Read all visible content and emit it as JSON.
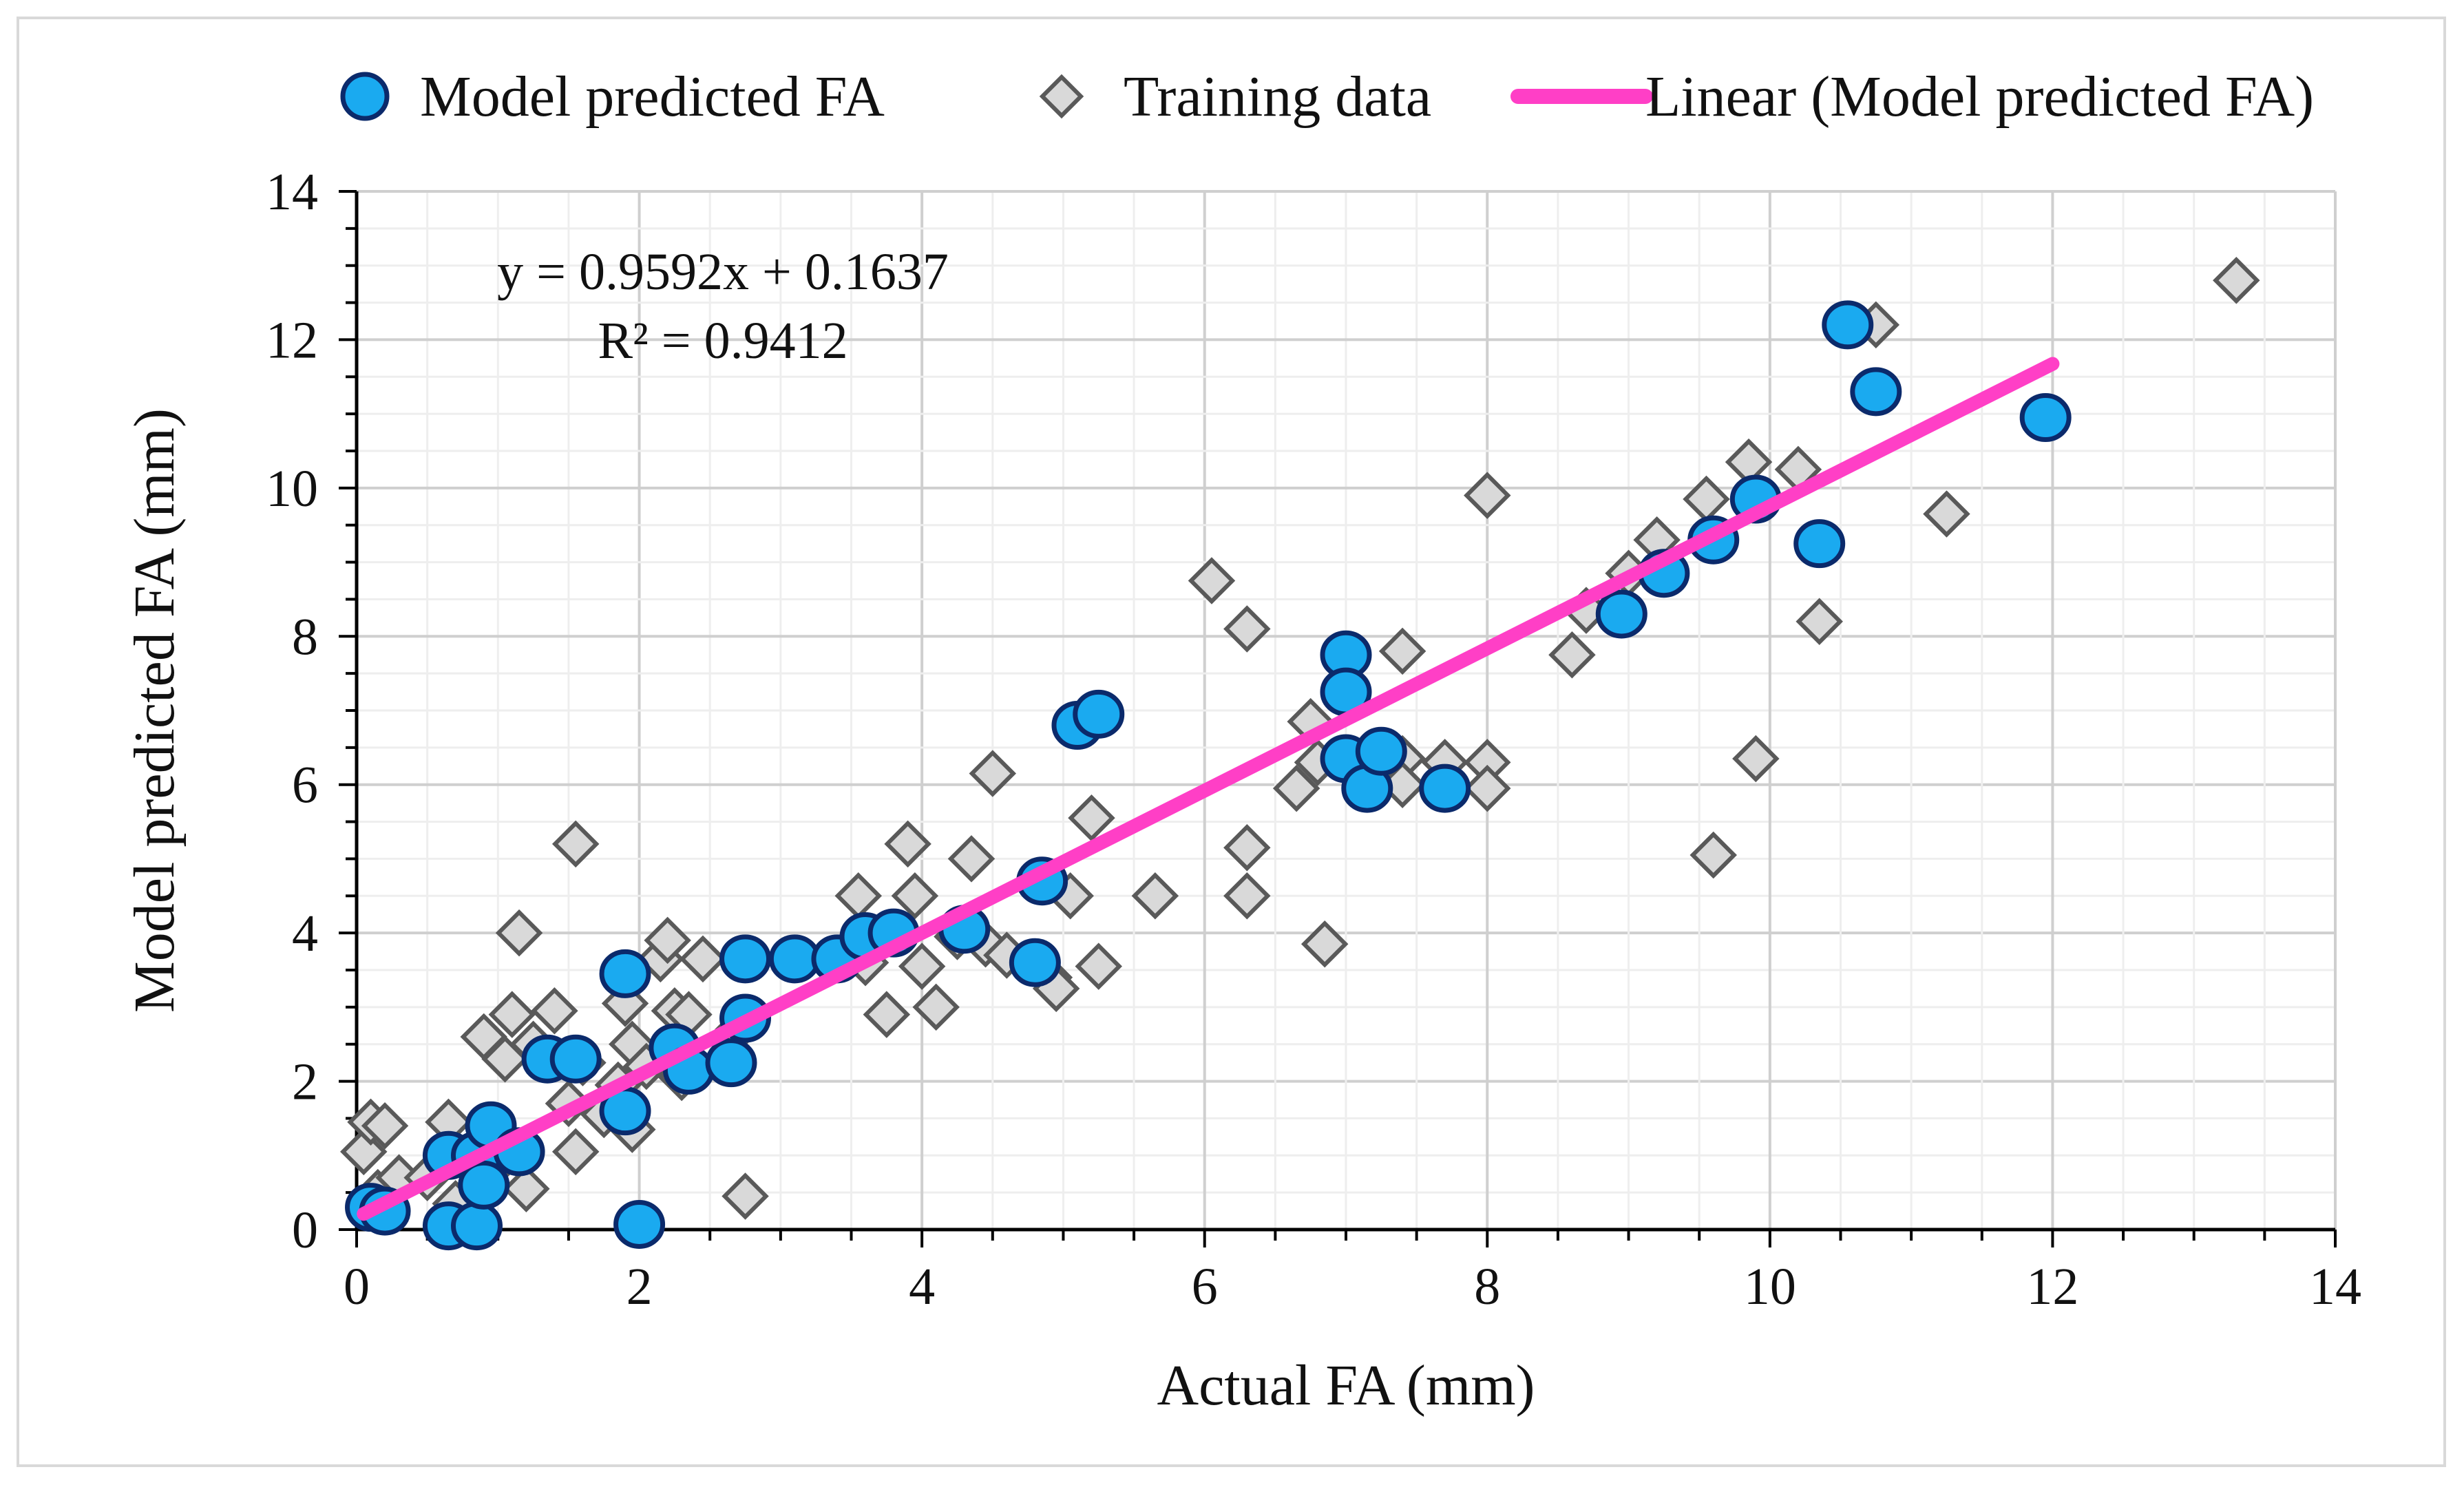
{
  "chart_data": {
    "type": "scatter",
    "xlabel": "Actual FA (mm)",
    "ylabel": "Model predicted FA (mm)",
    "xlim": [
      0,
      14
    ],
    "ylim": [
      0,
      14
    ],
    "xticks": [
      "0",
      "2",
      "4",
      "6",
      "8",
      "10",
      "12",
      "14"
    ],
    "yticks": [
      "0",
      "2",
      "4",
      "6",
      "8",
      "10",
      "12",
      "14"
    ],
    "grid": true,
    "legend_position": "top",
    "legend": [
      "Model predicted FA",
      "Training data",
      "Linear (Model predicted FA)"
    ],
    "equation": "y = 0.9592x + 0.1637",
    "r_squared": "R² = 0.9412",
    "trendline": {
      "name": "Linear (Model predicted FA)",
      "slope": 0.9592,
      "intercept": 0.1637,
      "x_range": [
        0.05,
        12.0
      ],
      "color": "#ff3fc6"
    },
    "series": [
      {
        "name": "Model predicted FA",
        "marker": "circle",
        "color": "#1aaaf0",
        "points": [
          [
            0.1,
            0.3
          ],
          [
            0.2,
            0.25
          ],
          [
            0.65,
            0.05
          ],
          [
            0.85,
            0.05
          ],
          [
            2.0,
            0.07
          ],
          [
            0.65,
            1.0
          ],
          [
            0.85,
            1.0
          ],
          [
            0.95,
            1.4
          ],
          [
            0.9,
            0.6
          ],
          [
            1.15,
            1.05
          ],
          [
            1.35,
            2.3
          ],
          [
            1.55,
            2.3
          ],
          [
            1.9,
            1.6
          ],
          [
            1.9,
            3.45
          ],
          [
            2.25,
            2.45
          ],
          [
            2.35,
            2.15
          ],
          [
            2.65,
            2.25
          ],
          [
            2.75,
            2.85
          ],
          [
            2.75,
            3.65
          ],
          [
            3.1,
            3.65
          ],
          [
            3.4,
            3.65
          ],
          [
            3.6,
            3.95
          ],
          [
            3.8,
            4.0
          ],
          [
            4.3,
            4.05
          ],
          [
            4.8,
            3.6
          ],
          [
            4.85,
            4.7
          ],
          [
            5.1,
            6.8
          ],
          [
            5.25,
            6.95
          ],
          [
            7.0,
            7.75
          ],
          [
            7.0,
            7.25
          ],
          [
            7.0,
            6.35
          ],
          [
            7.15,
            5.95
          ],
          [
            7.25,
            6.45
          ],
          [
            7.7,
            5.95
          ],
          [
            8.95,
            8.3
          ],
          [
            9.25,
            8.85
          ],
          [
            9.6,
            9.3
          ],
          [
            9.9,
            9.85
          ],
          [
            10.35,
            9.25
          ],
          [
            10.55,
            12.2
          ],
          [
            10.75,
            11.3
          ],
          [
            11.95,
            10.95
          ]
        ]
      },
      {
        "name": "Training data",
        "marker": "diamond",
        "color": "#d9d9d9",
        "points": [
          [
            0.05,
            1.05
          ],
          [
            0.1,
            1.45
          ],
          [
            0.2,
            1.4
          ],
          [
            0.15,
            0.5
          ],
          [
            0.3,
            0.7
          ],
          [
            0.5,
            0.7
          ],
          [
            0.65,
            1.45
          ],
          [
            0.7,
            0.35
          ],
          [
            0.9,
            2.6
          ],
          [
            0.95,
            0.8
          ],
          [
            1.05,
            2.3
          ],
          [
            1.1,
            2.9
          ],
          [
            1.15,
            4.0
          ],
          [
            1.2,
            0.55
          ],
          [
            1.25,
            2.5
          ],
          [
            1.4,
            2.95
          ],
          [
            1.5,
            1.7
          ],
          [
            1.55,
            1.05
          ],
          [
            1.55,
            5.2
          ],
          [
            1.6,
            2.25
          ],
          [
            1.75,
            1.55
          ],
          [
            1.85,
            1.95
          ],
          [
            1.9,
            3.05
          ],
          [
            1.95,
            2.5
          ],
          [
            1.95,
            1.35
          ],
          [
            2.05,
            2.2
          ],
          [
            2.15,
            3.65
          ],
          [
            2.2,
            3.9
          ],
          [
            2.25,
            2.95
          ],
          [
            2.3,
            2.05
          ],
          [
            2.35,
            2.9
          ],
          [
            2.45,
            3.65
          ],
          [
            2.7,
            2.7
          ],
          [
            2.75,
            0.45
          ],
          [
            3.55,
            4.5
          ],
          [
            3.6,
            3.6
          ],
          [
            3.75,
            2.9
          ],
          [
            3.9,
            5.2
          ],
          [
            3.95,
            4.5
          ],
          [
            4.0,
            3.55
          ],
          [
            4.1,
            3.0
          ],
          [
            4.25,
            3.95
          ],
          [
            4.35,
            5.0
          ],
          [
            4.45,
            3.85
          ],
          [
            4.5,
            6.15
          ],
          [
            4.6,
            3.7
          ],
          [
            4.9,
            3.4
          ],
          [
            4.95,
            3.25
          ],
          [
            5.05,
            4.5
          ],
          [
            5.2,
            5.55
          ],
          [
            5.25,
            3.55
          ],
          [
            5.65,
            4.5
          ],
          [
            6.05,
            8.75
          ],
          [
            6.3,
            8.1
          ],
          [
            6.3,
            5.15
          ],
          [
            6.3,
            4.5
          ],
          [
            6.65,
            5.95
          ],
          [
            6.75,
            6.85
          ],
          [
            6.8,
            6.3
          ],
          [
            6.85,
            3.85
          ],
          [
            7.4,
            7.8
          ],
          [
            7.4,
            6.35
          ],
          [
            7.4,
            6.0
          ],
          [
            7.7,
            6.3
          ],
          [
            8.0,
            9.9
          ],
          [
            8.0,
            6.3
          ],
          [
            8.0,
            5.95
          ],
          [
            8.6,
            7.75
          ],
          [
            8.7,
            8.35
          ],
          [
            9.0,
            8.85
          ],
          [
            9.2,
            9.3
          ],
          [
            9.55,
            9.85
          ],
          [
            9.6,
            5.05
          ],
          [
            9.85,
            10.35
          ],
          [
            9.9,
            6.35
          ],
          [
            10.2,
            10.25
          ],
          [
            10.35,
            8.2
          ],
          [
            10.75,
            12.2
          ],
          [
            11.25,
            9.65
          ],
          [
            13.3,
            12.8
          ]
        ]
      }
    ]
  }
}
